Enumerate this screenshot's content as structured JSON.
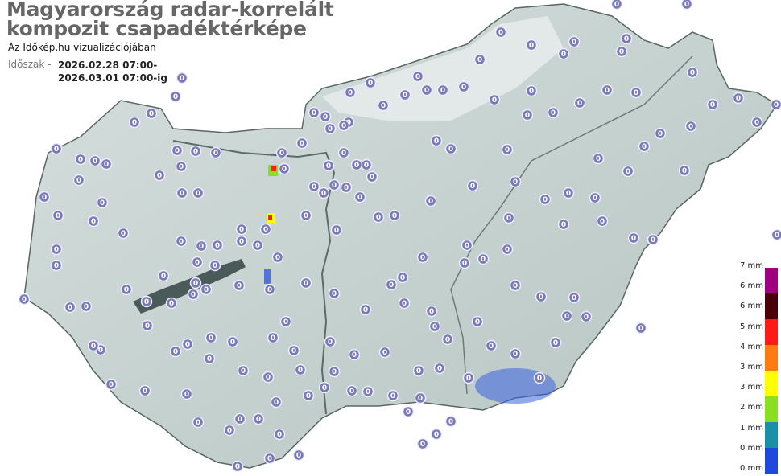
{
  "header": {
    "title_line1": "Magyarország radar-korrelált",
    "title_line2": "kompozit csapadéktérképe",
    "subtitle": "Az Időkép.hu vizualizációjában",
    "period_label": "Időszak -",
    "period_from": "2026.02.28 07:00-",
    "period_to": "2026.03.01 07:00-ig"
  },
  "legend": {
    "labels": [
      "7 mm",
      "6 mm",
      "6 mm",
      "5 mm",
      "4 mm",
      "3 mm",
      "3 mm",
      "2 mm",
      "1 mm",
      "0 mm",
      "0 mm"
    ],
    "colors": [
      "#a0007e",
      "#4a0008",
      "#ff1a1a",
      "#ff7a10",
      "#ffff00",
      "#88e020",
      "#1a90a8",
      "#2048e0"
    ]
  },
  "map": {
    "land_color": "#c8d4d2",
    "lake_color": "#4a5a58",
    "station_color": "#7a7ab8",
    "station_value": "0"
  }
}
